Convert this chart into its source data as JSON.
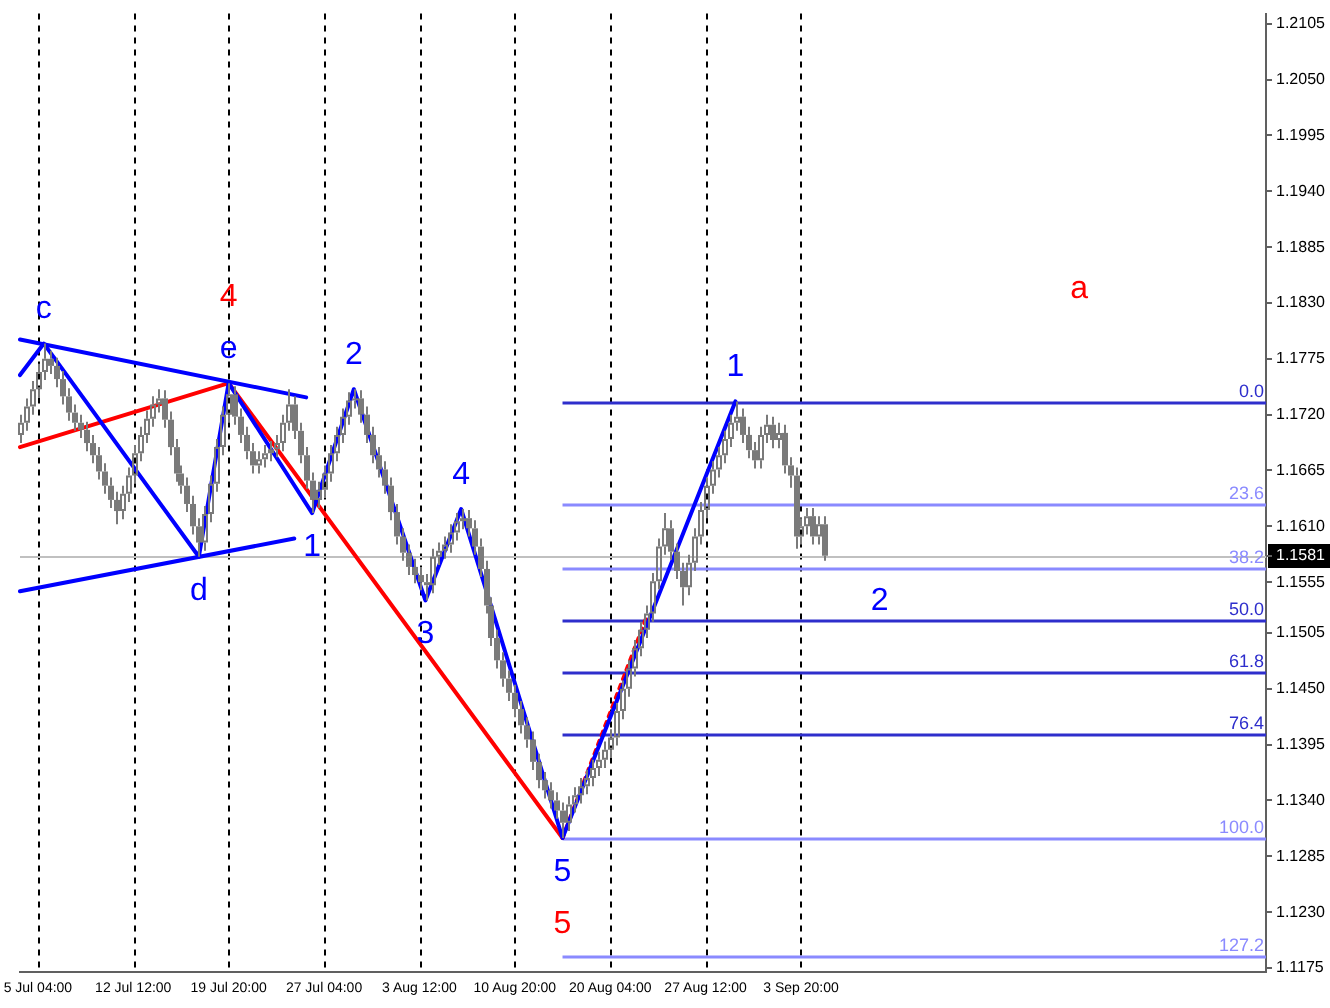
{
  "chart_data": {
    "type": "candlestick",
    "color": "#7a7a7a",
    "categories": [
      null,
      null,
      null,
      "5 Jul 04:00",
      null,
      null,
      null,
      null,
      null,
      null,
      null,
      null,
      null,
      null,
      null,
      null,
      null,
      null,
      null,
      "12 Jul 12:00",
      null,
      null,
      null,
      null,
      null,
      null,
      null,
      null,
      null,
      null,
      null,
      null,
      null,
      null,
      null,
      "19 Jul 20:00",
      null,
      null,
      null,
      null,
      null,
      null,
      null,
      null,
      null,
      null,
      null,
      null,
      null,
      null,
      null,
      "27 Jul 04:00",
      null,
      null,
      null,
      null,
      null,
      null,
      null,
      null,
      null,
      null,
      null,
      null,
      null,
      null,
      null,
      "3 Aug 12:00",
      null,
      null,
      null,
      null,
      null,
      null,
      null,
      null,
      null,
      null,
      null,
      null,
      null,
      null,
      null,
      "10 Aug 20:00",
      null,
      null,
      null,
      null,
      null,
      null,
      null,
      null,
      null,
      null,
      null,
      null,
      null,
      null,
      null,
      "20 Aug 04:00",
      null,
      null,
      null,
      null,
      null,
      null,
      null,
      null,
      null,
      null,
      null,
      null,
      null,
      null,
      null,
      "27 Aug 12:00",
      null,
      null,
      null,
      null,
      null,
      null,
      null,
      null,
      null,
      null,
      null,
      null,
      null,
      null,
      null,
      "3 Sep 20:00",
      null,
      null,
      null,
      null,
      null,
      null,
      null,
      null,
      null,
      null,
      null,
      null,
      null,
      null,
      null,
      null,
      null,
      null,
      null,
      null,
      null,
      null,
      null,
      null,
      null,
      null,
      null,
      null,
      null,
      null,
      null,
      null,
      null,
      null,
      null,
      null,
      null,
      null,
      null,
      null,
      null,
      null,
      null,
      null,
      null,
      null,
      null,
      null,
      null,
      null,
      null,
      null,
      null,
      null,
      null,
      null,
      null,
      null,
      null,
      null,
      null,
      null,
      null,
      null,
      null,
      null,
      null,
      null,
      null,
      null,
      null,
      null,
      null,
      null,
      null,
      null,
      null,
      null
    ],
    "ohlc": [
      [
        1.17,
        1.172,
        1.1692,
        1.1712
      ],
      [
        1.1712,
        1.1736,
        1.1704,
        1.1728
      ],
      [
        1.1728,
        1.1753,
        1.172,
        1.1745
      ],
      [
        1.1745,
        1.177,
        1.1737,
        1.1762
      ],
      [
        1.1762,
        1.179,
        1.1754,
        1.1775
      ],
      [
        1.1775,
        1.1783,
        1.176,
        1.1768
      ],
      [
        1.1768,
        1.1776,
        1.1747,
        1.1755
      ],
      [
        1.1755,
        1.1763,
        1.173,
        1.1738
      ],
      [
        1.1738,
        1.1746,
        1.1714,
        1.1722
      ],
      [
        1.1722,
        1.173,
        1.1704,
        1.1712
      ],
      [
        1.1712,
        1.172,
        1.1697,
        1.1705
      ],
      [
        1.1705,
        1.1713,
        1.1684,
        1.1692
      ],
      [
        1.1692,
        1.17,
        1.1672,
        1.168
      ],
      [
        1.168,
        1.1688,
        1.1656,
        1.1664
      ],
      [
        1.1664,
        1.1672,
        1.1642,
        1.165
      ],
      [
        1.165,
        1.1658,
        1.1628,
        1.1636
      ],
      [
        1.1636,
        1.1644,
        1.1612,
        1.1625
      ],
      [
        1.1625,
        1.165,
        1.1617,
        1.1642
      ],
      [
        1.1642,
        1.1668,
        1.1634,
        1.166
      ],
      [
        1.166,
        1.169,
        1.1652,
        1.1682
      ],
      [
        1.1682,
        1.1708,
        1.1674,
        1.17
      ],
      [
        1.17,
        1.1724,
        1.1692,
        1.1716
      ],
      [
        1.1716,
        1.1738,
        1.1708,
        1.173
      ],
      [
        1.173,
        1.1745,
        1.1722,
        1.1736
      ],
      [
        1.1736,
        1.1744,
        1.1707,
        1.1715
      ],
      [
        1.1715,
        1.1723,
        1.168,
        1.1688
      ],
      [
        1.1688,
        1.1696,
        1.1654,
        1.1662
      ],
      [
        1.1662,
        1.167,
        1.1642,
        1.165
      ],
      [
        1.165,
        1.1658,
        1.1624,
        1.1632
      ],
      [
        1.1632,
        1.164,
        1.1602,
        1.161
      ],
      [
        1.161,
        1.1618,
        1.158,
        1.1594
      ],
      [
        1.1594,
        1.163,
        1.1586,
        1.1622
      ],
      [
        1.1622,
        1.166,
        1.1614,
        1.1652
      ],
      [
        1.1652,
        1.1696,
        1.1644,
        1.1688
      ],
      [
        1.1688,
        1.1728,
        1.168,
        1.172
      ],
      [
        1.172,
        1.1751,
        1.1712,
        1.174
      ],
      [
        1.174,
        1.1748,
        1.171,
        1.1718
      ],
      [
        1.1718,
        1.1726,
        1.1692,
        1.17
      ],
      [
        1.17,
        1.1708,
        1.1676,
        1.1684
      ],
      [
        1.1684,
        1.1692,
        1.1662,
        1.167
      ],
      [
        1.167,
        1.1684,
        1.1662,
        1.1676
      ],
      [
        1.1676,
        1.169,
        1.1668,
        1.1682
      ],
      [
        1.1682,
        1.1694,
        1.1674,
        1.1686
      ],
      [
        1.1686,
        1.17,
        1.1678,
        1.1692
      ],
      [
        1.1692,
        1.172,
        1.1684,
        1.1712
      ],
      [
        1.1712,
        1.1745,
        1.1704,
        1.173
      ],
      [
        1.173,
        1.1738,
        1.1696,
        1.1704
      ],
      [
        1.1704,
        1.1712,
        1.1672,
        1.168
      ],
      [
        1.168,
        1.1688,
        1.1647,
        1.1655
      ],
      [
        1.1655,
        1.1663,
        1.1623,
        1.1636
      ],
      [
        1.1636,
        1.1654,
        1.1628,
        1.1646
      ],
      [
        1.1646,
        1.167,
        1.1638,
        1.1662
      ],
      [
        1.1662,
        1.169,
        1.1654,
        1.1682
      ],
      [
        1.1682,
        1.1708,
        1.1674,
        1.17
      ],
      [
        1.17,
        1.1726,
        1.1692,
        1.1718
      ],
      [
        1.1718,
        1.1742,
        1.171,
        1.1734
      ],
      [
        1.1734,
        1.1745,
        1.1726,
        1.1736
      ],
      [
        1.1736,
        1.1744,
        1.1712,
        1.172
      ],
      [
        1.172,
        1.1728,
        1.1692,
        1.17
      ],
      [
        1.17,
        1.1708,
        1.1672,
        1.168
      ],
      [
        1.168,
        1.1688,
        1.1658,
        1.1666
      ],
      [
        1.1666,
        1.1674,
        1.1642,
        1.165
      ],
      [
        1.165,
        1.1658,
        1.1616,
        1.1624
      ],
      [
        1.1624,
        1.1632,
        1.1592,
        1.16
      ],
      [
        1.16,
        1.1608,
        1.1576,
        1.1584
      ],
      [
        1.1584,
        1.1592,
        1.1562,
        1.157
      ],
      [
        1.157,
        1.1578,
        1.1554,
        1.1562
      ],
      [
        1.1562,
        1.157,
        1.1547,
        1.1555
      ],
      [
        1.1555,
        1.1563,
        1.1537,
        1.1552
      ],
      [
        1.1552,
        1.1588,
        1.1544,
        1.158
      ],
      [
        1.158,
        1.1594,
        1.1572,
        1.1586
      ],
      [
        1.1586,
        1.16,
        1.1578,
        1.1592
      ],
      [
        1.1592,
        1.1612,
        1.1584,
        1.1604
      ],
      [
        1.1604,
        1.1623,
        1.1596,
        1.1615
      ],
      [
        1.1615,
        1.1627,
        1.1607,
        1.1618
      ],
      [
        1.1618,
        1.1626,
        1.16,
        1.1608
      ],
      [
        1.1608,
        1.1616,
        1.1582,
        1.159
      ],
      [
        1.159,
        1.1598,
        1.156,
        1.1568
      ],
      [
        1.1568,
        1.1576,
        1.1524,
        1.1532
      ],
      [
        1.1532,
        1.154,
        1.1492,
        1.15
      ],
      [
        1.15,
        1.1508,
        1.147,
        1.1478
      ],
      [
        1.1478,
        1.1486,
        1.1452,
        1.146
      ],
      [
        1.146,
        1.1468,
        1.1438,
        1.1446
      ],
      [
        1.1446,
        1.1454,
        1.1422,
        1.143
      ],
      [
        1.143,
        1.1438,
        1.1406,
        1.1414
      ],
      [
        1.1414,
        1.1422,
        1.1392,
        1.14
      ],
      [
        1.14,
        1.1408,
        1.137,
        1.1378
      ],
      [
        1.1378,
        1.1386,
        1.1352,
        1.136
      ],
      [
        1.136,
        1.1368,
        1.1342,
        1.135
      ],
      [
        1.135,
        1.1358,
        1.1332,
        1.134
      ],
      [
        1.134,
        1.1348,
        1.1322,
        1.133
      ],
      [
        1.133,
        1.1338,
        1.1303,
        1.1318
      ],
      [
        1.1318,
        1.1344,
        1.131,
        1.1336
      ],
      [
        1.1336,
        1.1353,
        1.1328,
        1.1345
      ],
      [
        1.1345,
        1.1362,
        1.1337,
        1.1354
      ],
      [
        1.1354,
        1.137,
        1.1346,
        1.1362
      ],
      [
        1.1362,
        1.138,
        1.1354,
        1.1372
      ],
      [
        1.1372,
        1.1388,
        1.1364,
        1.138
      ],
      [
        1.138,
        1.1398,
        1.1372,
        1.139
      ],
      [
        1.139,
        1.141,
        1.1382,
        1.1402
      ],
      [
        1.1402,
        1.1436,
        1.1394,
        1.1428
      ],
      [
        1.1428,
        1.1458,
        1.142,
        1.145
      ],
      [
        1.145,
        1.1478,
        1.1442,
        1.147
      ],
      [
        1.147,
        1.1498,
        1.1462,
        1.149
      ],
      [
        1.149,
        1.1516,
        1.1482,
        1.1508
      ],
      [
        1.1508,
        1.1532,
        1.15,
        1.1524
      ],
      [
        1.1524,
        1.1564,
        1.1516,
        1.1556
      ],
      [
        1.1556,
        1.1598,
        1.1548,
        1.159
      ],
      [
        1.159,
        1.1623,
        1.1582,
        1.1608
      ],
      [
        1.1608,
        1.1616,
        1.1577,
        1.1585
      ],
      [
        1.1585,
        1.1593,
        1.1558,
        1.1566
      ],
      [
        1.1566,
        1.1574,
        1.1532,
        1.155
      ],
      [
        1.155,
        1.1582,
        1.1542,
        1.1574
      ],
      [
        1.1574,
        1.1608,
        1.1566,
        1.16
      ],
      [
        1.16,
        1.1634,
        1.1592,
        1.1626
      ],
      [
        1.1626,
        1.1658,
        1.1618,
        1.165
      ],
      [
        1.165,
        1.1674,
        1.1642,
        1.1666
      ],
      [
        1.1666,
        1.1688,
        1.1658,
        1.168
      ],
      [
        1.168,
        1.1704,
        1.1672,
        1.1696
      ],
      [
        1.1696,
        1.172,
        1.1688,
        1.1712
      ],
      [
        1.1712,
        1.1733,
        1.1704,
        1.1718
      ],
      [
        1.1718,
        1.1726,
        1.1692,
        1.17
      ],
      [
        1.17,
        1.1708,
        1.1677,
        1.1685
      ],
      [
        1.1685,
        1.1693,
        1.1667,
        1.1675
      ],
      [
        1.1675,
        1.1708,
        1.1667,
        1.17
      ],
      [
        1.17,
        1.172,
        1.1692,
        1.171
      ],
      [
        1.171,
        1.1718,
        1.1687,
        1.1695
      ],
      [
        1.1695,
        1.1712,
        1.1687,
        1.1702
      ],
      [
        1.1702,
        1.171,
        1.1662,
        1.167
      ],
      [
        1.167,
        1.1678,
        1.1648,
        1.166
      ],
      [
        1.166,
        1.1668,
        1.1588,
        1.16
      ],
      [
        1.16,
        1.1618,
        1.1592,
        1.161
      ],
      [
        1.161,
        1.1628,
        1.1602,
        1.162
      ],
      [
        1.162,
        1.1628,
        1.1592,
        1.16
      ],
      [
        1.16,
        1.162,
        1.1592,
        1.1612
      ],
      [
        1.1612,
        1.162,
        1.1576,
        1.1581
      ],
      null,
      null,
      null,
      null,
      null,
      null,
      null,
      null,
      null,
      null,
      null,
      null,
      null,
      null,
      null,
      null,
      null,
      null,
      null,
      null,
      null,
      null,
      null,
      null,
      null,
      null,
      null,
      null,
      null,
      null,
      null,
      null,
      null,
      null,
      null,
      null,
      null,
      null,
      null,
      null,
      null,
      null,
      null,
      null,
      null,
      null,
      null,
      null,
      null,
      null,
      null,
      null,
      null,
      null,
      null,
      null,
      null,
      null,
      null,
      null,
      null,
      null,
      null,
      null,
      null,
      null,
      null,
      null,
      null,
      null,
      null,
      null,
      null,
      null
    ],
    "series": [
      {
        "type": "line",
        "color": "#0000ff",
        "values": [
          1.1759,
          null,
          null,
          null,
          1.179,
          null,
          null,
          null,
          null,
          null,
          null,
          null,
          null,
          null,
          null,
          null,
          null,
          null,
          null,
          null,
          null,
          null,
          null,
          null,
          null,
          null,
          null,
          null,
          null,
          null,
          1.158,
          null,
          null,
          null,
          null,
          1.1751,
          null,
          null,
          null,
          null,
          null,
          null,
          null,
          null,
          null,
          null,
          null,
          null,
          null,
          1.1623,
          null,
          null,
          null,
          null,
          null,
          null,
          1.1745,
          null,
          null,
          null,
          null,
          null,
          null,
          null,
          null,
          null,
          null,
          null,
          1.1537,
          null,
          null,
          null,
          null,
          null,
          1.1627,
          null,
          null,
          null,
          null,
          null,
          null,
          null,
          null,
          null,
          null,
          null,
          null,
          null,
          null,
          null,
          null,
          1.1303,
          null,
          null,
          null,
          null,
          null,
          null,
          null,
          null,
          null,
          null,
          null,
          null,
          null,
          null,
          null,
          null,
          null,
          null,
          null,
          null,
          null,
          null,
          null,
          null,
          null,
          null,
          null,
          null,
          1.1733,
          null,
          null,
          null,
          null,
          null,
          null,
          null,
          null,
          null,
          null,
          null,
          null,
          null,
          null,
          null,
          null,
          null,
          null,
          null,
          null,
          null,
          null,
          null,
          null,
          null,
          null,
          null,
          null,
          null,
          null,
          null,
          null,
          null,
          null,
          null,
          null,
          null,
          null,
          null,
          null,
          null,
          null,
          null,
          null,
          null,
          null,
          null,
          null,
          null,
          null,
          null,
          null,
          null,
          null,
          null,
          null,
          null,
          null,
          null,
          null,
          null,
          null,
          null,
          null,
          null,
          null,
          null,
          null,
          null,
          null,
          null,
          null,
          null,
          null,
          null,
          null,
          null,
          null,
          null,
          null,
          null,
          null,
          null,
          null,
          null,
          null,
          null,
          null,
          null
        ]
      },
      {
        "type": "line",
        "color": "#0000ff",
        "values": [
          1.1794,
          null,
          null,
          null,
          null,
          null,
          null,
          null,
          null,
          null,
          null,
          null,
          null,
          null,
          null,
          null,
          null,
          null,
          null,
          null,
          null,
          null,
          null,
          null,
          null,
          null,
          null,
          null,
          null,
          null,
          null,
          null,
          null,
          null,
          null,
          null,
          null,
          null,
          null,
          null,
          null,
          null,
          null,
          null,
          null,
          null,
          null,
          null,
          1.1737,
          null,
          null,
          null,
          null,
          null,
          null,
          null,
          null,
          null,
          null,
          null,
          null,
          null,
          null,
          null,
          null,
          null,
          null,
          null,
          null,
          null,
          null,
          null,
          null,
          null,
          null,
          null,
          null,
          null,
          null,
          null,
          null,
          null,
          null,
          null,
          null,
          null,
          null,
          null,
          null,
          null,
          null,
          null,
          null,
          null,
          null,
          null,
          null,
          null,
          null,
          null,
          null,
          null,
          null,
          null,
          null,
          null,
          null,
          null,
          null,
          null,
          null,
          null,
          null,
          null,
          null,
          null,
          null,
          null,
          null,
          null,
          null,
          null,
          null,
          null,
          null,
          null,
          null,
          null,
          null,
          null,
          null,
          null,
          null,
          null,
          null,
          null,
          null,
          null,
          null,
          null,
          null,
          null,
          null,
          null,
          null,
          null,
          null,
          null,
          null,
          null,
          null,
          null,
          null,
          null,
          null,
          null,
          null,
          null,
          null,
          null,
          null,
          null,
          null,
          null,
          null,
          null,
          null,
          null,
          null,
          null,
          null,
          null,
          null,
          null,
          null,
          null,
          null,
          null,
          null,
          null,
          null,
          null,
          null,
          null,
          null,
          null,
          null,
          null,
          null,
          null,
          null,
          null,
          null,
          null,
          null,
          null,
          null,
          null,
          null,
          null,
          null,
          null,
          null,
          null,
          null,
          null,
          null,
          null,
          null,
          null
        ]
      },
      {
        "type": "line",
        "color": "#0000ff",
        "values": [
          1.1546,
          null,
          null,
          null,
          null,
          null,
          null,
          null,
          null,
          null,
          null,
          null,
          null,
          null,
          null,
          null,
          null,
          null,
          null,
          null,
          null,
          null,
          null,
          null,
          null,
          null,
          null,
          null,
          null,
          null,
          null,
          null,
          null,
          null,
          null,
          null,
          null,
          null,
          null,
          null,
          null,
          null,
          null,
          null,
          null,
          null,
          1.1598,
          null,
          null,
          null,
          null,
          null,
          null,
          null,
          null,
          null,
          null,
          null,
          null,
          null,
          null,
          null,
          null,
          null,
          null,
          null,
          null,
          null,
          null,
          null,
          null,
          null,
          null,
          null,
          null,
          null,
          null,
          null,
          null,
          null,
          null,
          null,
          null,
          null,
          null,
          null,
          null,
          null,
          null,
          null,
          null,
          null,
          null,
          null,
          null,
          null,
          null,
          null,
          null,
          null,
          null,
          null,
          null,
          null,
          null,
          null,
          null,
          null,
          null,
          null,
          null,
          null,
          null,
          null,
          null,
          null,
          null,
          null,
          null,
          null,
          null,
          null,
          null,
          null,
          null,
          null,
          null,
          null,
          null,
          null,
          null,
          null,
          null,
          null,
          null,
          null,
          null,
          null,
          null,
          null,
          null,
          null,
          null,
          null,
          null,
          null,
          null,
          null,
          null,
          null,
          null,
          null,
          null,
          null,
          null,
          null,
          null,
          null,
          null,
          null,
          null,
          null,
          null,
          null,
          null,
          null,
          null,
          null,
          null,
          null,
          null,
          null,
          null,
          null,
          null,
          null,
          null,
          null,
          null,
          null,
          null,
          null,
          null,
          null,
          null,
          null,
          null,
          null,
          null,
          null,
          null,
          null,
          null,
          null,
          null,
          null,
          null,
          null,
          null,
          null,
          null,
          null,
          null,
          null,
          null,
          null,
          null,
          null,
          null,
          null
        ]
      },
      {
        "type": "line",
        "color": "#ff0000",
        "values": [
          1.1688,
          null,
          null,
          null,
          null,
          null,
          null,
          null,
          null,
          null,
          null,
          null,
          null,
          null,
          null,
          null,
          null,
          null,
          null,
          null,
          null,
          null,
          null,
          null,
          null,
          null,
          null,
          null,
          null,
          null,
          null,
          null,
          null,
          null,
          null,
          1.1751,
          null,
          null,
          null,
          null,
          null,
          null,
          null,
          null,
          null,
          null,
          null,
          null,
          null,
          null,
          null,
          null,
          null,
          null,
          null,
          null,
          null,
          null,
          null,
          null,
          null,
          null,
          null,
          null,
          null,
          null,
          null,
          null,
          null,
          null,
          null,
          null,
          null,
          null,
          null,
          null,
          null,
          null,
          null,
          null,
          null,
          null,
          null,
          null,
          null,
          null,
          null,
          null,
          null,
          null,
          null,
          1.1303,
          null,
          null,
          null,
          null,
          null,
          null,
          null,
          null,
          null,
          null,
          null,
          null,
          null,
          null,
          null,
          null,
          null,
          null,
          null,
          null,
          null,
          null,
          null,
          null,
          null,
          null,
          null,
          null,
          null,
          null,
          null,
          null,
          null,
          null,
          null,
          null,
          null,
          null,
          null,
          null,
          null,
          null,
          null,
          null,
          null,
          null,
          null,
          null,
          null,
          null,
          null,
          null,
          null,
          null,
          null,
          null,
          null,
          null,
          null,
          null,
          null,
          null,
          null,
          null,
          null,
          null,
          null,
          null,
          null,
          null,
          null,
          null,
          null,
          null,
          null,
          null,
          null,
          null,
          null,
          null,
          null,
          null,
          null,
          null,
          null,
          null,
          null,
          null,
          null,
          null,
          null,
          null,
          null,
          null,
          null,
          null,
          null,
          null,
          null,
          null,
          null,
          null,
          null,
          null,
          null,
          null,
          null,
          null,
          null,
          null,
          null,
          null,
          null,
          null,
          null,
          null,
          null,
          null
        ]
      },
      {
        "type": "line",
        "color": "#ff0000",
        "line_style": "dotted",
        "values": [
          null,
          null,
          null,
          null,
          null,
          null,
          null,
          null,
          null,
          null,
          null,
          null,
          null,
          null,
          null,
          null,
          null,
          null,
          null,
          null,
          null,
          null,
          null,
          null,
          null,
          null,
          null,
          null,
          null,
          null,
          null,
          null,
          null,
          null,
          null,
          null,
          null,
          null,
          null,
          null,
          null,
          null,
          null,
          null,
          null,
          null,
          null,
          null,
          null,
          null,
          null,
          null,
          null,
          null,
          null,
          null,
          null,
          null,
          null,
          null,
          null,
          null,
          null,
          null,
          null,
          null,
          null,
          null,
          null,
          null,
          null,
          null,
          null,
          null,
          null,
          null,
          null,
          null,
          null,
          null,
          null,
          null,
          null,
          null,
          null,
          null,
          null,
          null,
          null,
          null,
          null,
          1.1303,
          null,
          null,
          null,
          null,
          null,
          null,
          null,
          null,
          null,
          null,
          null,
          null,
          null,
          1.1519,
          null,
          null,
          null,
          null,
          null,
          null,
          null,
          null,
          null,
          null,
          null,
          null,
          null,
          null,
          null,
          null,
          null,
          null,
          null,
          null,
          null,
          null,
          null,
          null,
          null,
          null,
          null,
          null,
          null,
          null,
          null,
          null,
          null,
          null,
          null,
          null,
          null,
          null,
          null,
          null,
          null,
          null,
          null,
          null,
          null,
          null,
          null,
          null,
          null,
          null,
          null,
          null,
          null,
          null,
          null,
          null,
          null,
          null,
          null,
          null,
          null,
          null,
          null,
          null,
          null,
          null,
          null,
          null,
          null,
          null,
          null,
          null,
          null,
          null,
          null,
          null,
          null,
          null,
          null,
          null,
          null,
          null,
          null,
          null,
          null,
          null,
          null,
          null,
          null,
          null,
          null,
          null,
          null,
          null,
          null,
          null,
          null,
          null,
          null,
          null,
          null,
          null,
          null,
          null
        ]
      }
    ],
    "ylim": [
      1.1171,
      1.2115
    ],
    "yticks": [
      1.2105,
      {
        "value": 1.205,
        "label": "1.2050"
      },
      1.1995,
      {
        "value": 1.194,
        "label": "1.1940"
      },
      1.1885,
      {
        "value": 1.183,
        "label": "1.1830"
      },
      1.1775,
      {
        "value": 1.172,
        "label": "1.1720"
      },
      1.1665,
      {
        "value": 1.161,
        "label": "1.1610"
      },
      1.1581,
      1.1555,
      1.1505,
      {
        "value": 1.145,
        "label": "1.1450"
      },
      1.1395,
      {
        "value": 1.134,
        "label": "1.1340"
      },
      1.1285,
      {
        "value": 1.123,
        "label": "1.1230"
      },
      1.1175
    ],
    "y2lim": [
      130.7,
      -88.8
    ],
    "grid": "x",
    "ref_lines": [
      {
        "axis": "y",
        "value": 1.1581,
        "color": "#c0c0c0"
      },
      {
        "axis": "y2",
        "value": 0,
        "label": "0.0",
        "color": "#2e2ecc"
      },
      {
        "axis": "y2",
        "value": 23.6,
        "label": "23.6",
        "color": "#8a8aff"
      },
      {
        "axis": "y2",
        "value": 38.2,
        "label": "38.2",
        "color": "#8a8aff"
      },
      {
        "axis": "y2",
        "value": 50,
        "label": "50.0",
        "color": "#2e2ecc"
      },
      {
        "axis": "y2",
        "value": 61.8,
        "label": "61.8",
        "color": "#2e2ecc"
      },
      {
        "axis": "y2",
        "value": 76.4,
        "label": "76.4",
        "color": "#2e2ecc"
      },
      {
        "axis": "y2",
        "value": 100,
        "label": "100.0",
        "color": "#8a8aff"
      },
      {
        "axis": "y2",
        "value": 127.2,
        "label": "127.2",
        "color": "#8a8aff"
      }
    ],
    "annotations": [
      {
        "text": "c",
        "y": 1.179
      },
      {
        "text": "e",
        "x": "19 Jul 20:00",
        "y": 1.1751
      },
      {
        "text": "4",
        "x": "19 Jul 20:00",
        "y": 1.1751
      },
      {
        "text": "d",
        "y": 1.158
      },
      {
        "text": "2",
        "y": 1.1745
      },
      {
        "text": "1",
        "y": 1.1623
      },
      {
        "text": "3",
        "y": 1.1537
      },
      {
        "text": "4",
        "y": 1.1627
      },
      {
        "text": "5",
        "y": 1.1303
      },
      {
        "text": "5",
        "y": 1.1303
      },
      {
        "text": "1",
        "y": 1.1733
      },
      "2",
      "a"
    ]
  }
}
